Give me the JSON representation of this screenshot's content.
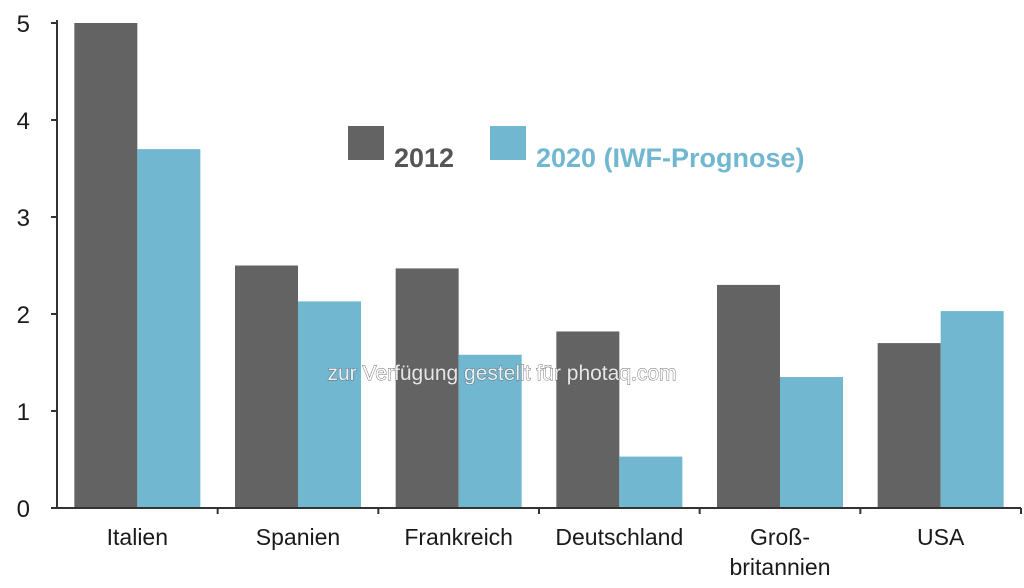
{
  "chart_data": {
    "type": "bar",
    "categories": [
      "Italien",
      "Spanien",
      "Frankreich",
      "Deutschland",
      "Groß-\nbritannien",
      "USA"
    ],
    "series": [
      {
        "name": "2012",
        "color": "#636363",
        "values": [
          5.0,
          2.5,
          2.47,
          1.82,
          2.3,
          1.7
        ]
      },
      {
        "name": "2020 (IWF-Prognose)",
        "color": "#72b7d0",
        "values": [
          3.7,
          2.13,
          1.58,
          0.53,
          1.35,
          2.03
        ]
      }
    ],
    "ylim": [
      0,
      5
    ],
    "yticks": [
      "0",
      "1",
      "2",
      "3",
      "4",
      "5"
    ],
    "legend": "top-center",
    "grid": false
  },
  "watermark": "zur Verfügung gestellt für photaq.com"
}
